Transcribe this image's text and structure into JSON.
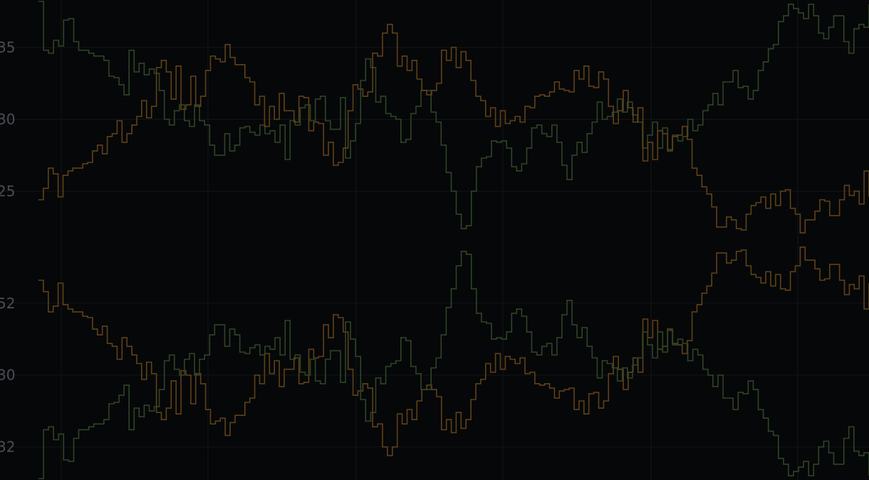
{
  "chart_data": [
    {
      "type": "line",
      "panel": "top",
      "title": "",
      "xlabel": "",
      "ylabel": "",
      "ytick_labels": [
        "35",
        "30",
        "25"
      ],
      "ylim": [
        21.6,
        38.3
      ],
      "grid": true,
      "series": [
        {
          "color": "#2f4526",
          "values": [
            38.2,
            34.8,
            34.6,
            35.5,
            35.1,
            36.9,
            37.0,
            35.4,
            34.8,
            34.8,
            34.6,
            34.4,
            34.4,
            34.1,
            33.0,
            32.9,
            32.4,
            31.7,
            34.8,
            33.3,
            33.9,
            33.1,
            33.5,
            33.2,
            32.0,
            30.0,
            29.6,
            30.6,
            31.0,
            29.9,
            29.5,
            31.0,
            29.9,
            29.6,
            28.2,
            27.5,
            27.5,
            29.0,
            27.8,
            28.2,
            29.4,
            29.5,
            29.1,
            28.9,
            29.6,
            29.0,
            29.2,
            28.4,
            29.6,
            27.2,
            29.9,
            29.6,
            30.8,
            31.0,
            29.9,
            31.4,
            31.6,
            29.9,
            29.3,
            29.3,
            31.5,
            27.3,
            28.5,
            29.7,
            32.7,
            34.2,
            33.6,
            31.2,
            31.6,
            30.4,
            30.2,
            30.0,
            28.4,
            28.6,
            30.4,
            30.9,
            32.0,
            32.0,
            30.5,
            29.8,
            28.2,
            26.3,
            25.0,
            23.4,
            22.4,
            22.6,
            25.0,
            26.7,
            27.3,
            27.4,
            28.5,
            28.4,
            28.5,
            28.0,
            26.7,
            26.4,
            26.9,
            28.0,
            29.4,
            29.6,
            29.0,
            28.8,
            29.6,
            28.4,
            26.8,
            25.8,
            27.5,
            28.4,
            27.7,
            29.0,
            29.8,
            31.2,
            30.0,
            30.2,
            30.5,
            31.4,
            30.5,
            31.2,
            30.3,
            29.8,
            28.0,
            28.9,
            29.8,
            28.0,
            29.4,
            27.9,
            28.9,
            28.5,
            28.8,
            30.0,
            29.2,
            29.6,
            30.6,
            31.0,
            31.8,
            31.0,
            32.6,
            32.6,
            33.4,
            32.2,
            32.3,
            31.4,
            32.0,
            33.4,
            34.0,
            34.9,
            35.2,
            36.8,
            37.2,
            38.0,
            37.7,
            37.4,
            37.0,
            38.0,
            37.2,
            36.0,
            35.6,
            36.4,
            37.2,
            37.2,
            35.4,
            34.6,
            36.3,
            36.6,
            36.4,
            38.0
          ]
        },
        {
          "color": "#5e4218",
          "values": [
            24.4,
            25.2,
            26.6,
            26.2,
            24.6,
            26.1,
            26.4,
            26.6,
            26.6,
            26.9,
            27.0,
            27.8,
            28.2,
            27.6,
            28.8,
            29.0,
            29.9,
            28.4,
            29.0,
            29.6,
            30.2,
            31.3,
            30.1,
            30.9,
            33.6,
            34.1,
            33.3,
            31.4,
            33.7,
            30.7,
            31.0,
            33.0,
            30.9,
            31.6,
            33.4,
            34.4,
            34.2,
            34.0,
            35.2,
            34.3,
            33.8,
            33.8,
            32.9,
            32.6,
            31.0,
            31.6,
            29.5,
            30.9,
            30.0,
            31.8,
            30.6,
            30.6,
            29.8,
            31.6,
            31.5,
            29.2,
            29.8,
            29.7,
            27.5,
            28.4,
            26.8,
            27.0,
            28.0,
            30.6,
            32.4,
            32.1,
            31.6,
            31.9,
            34.6,
            34.4,
            36.0,
            36.6,
            36.0,
            33.7,
            34.4,
            33.4,
            34.1,
            32.8,
            32.0,
            31.7,
            32.0,
            32.5,
            34.8,
            34.1,
            35.0,
            33.6,
            34.7,
            34.1,
            32.7,
            31.6,
            31.3,
            30.2,
            30.8,
            29.5,
            30.6,
            29.7,
            29.9,
            30.2,
            29.8,
            30.9,
            30.8,
            31.6,
            31.7,
            31.6,
            31.9,
            32.6,
            32.1,
            32.0,
            31.9,
            33.4,
            32.8,
            33.7,
            32.3,
            32.2,
            33.3,
            32.8,
            30.9,
            29.7,
            30.6,
            32.0,
            30.8,
            29.8,
            30.8,
            27.1,
            28.4,
            27.2,
            29.2,
            29.0,
            27.8,
            28.8,
            28.9,
            29.5,
            28.6,
            26.6,
            26.1,
            25.3,
            24.8,
            23.9,
            22.5,
            22.5,
            23.2,
            23.0,
            22.4,
            22.3,
            23.4,
            24.0,
            24.2,
            24.6,
            23.8,
            24.8,
            24.0,
            25.0,
            25.1,
            23.8,
            23.4,
            22.1,
            23.0,
            23.0,
            23.6,
            24.4,
            24.3,
            23.3,
            23.3,
            24.4,
            25.4,
            24.7,
            25.0,
            24.1,
            26.4,
            24.6
          ]
        }
      ]
    },
    {
      "type": "line",
      "panel": "bottom",
      "title": "",
      "xlabel": "",
      "ylabel": "",
      "ytick_labels": [
        "52",
        "30",
        "32"
      ],
      "ylim": [
        -38.3,
        -21.6
      ],
      "grid": true,
      "series": [
        {
          "color": "#5e4218",
          "values": [
            -24.4,
            -25.2,
            -26.6,
            -26.2,
            -24.6,
            -26.1,
            -26.4,
            -26.6,
            -26.6,
            -26.9,
            -27.0,
            -27.8,
            -28.2,
            -27.6,
            -28.8,
            -29.0,
            -29.9,
            -28.4,
            -29.0,
            -29.6,
            -30.2,
            -31.3,
            -30.1,
            -30.9,
            -33.6,
            -34.1,
            -33.3,
            -31.4,
            -33.7,
            -30.7,
            -31.0,
            -33.0,
            -30.9,
            -31.6,
            -33.4,
            -34.4,
            -34.2,
            -34.0,
            -35.2,
            -34.3,
            -33.8,
            -33.8,
            -32.9,
            -32.6,
            -31.0,
            -31.6,
            -29.5,
            -30.9,
            -30.0,
            -31.8,
            -30.6,
            -30.6,
            -29.8,
            -31.6,
            -31.5,
            -29.2,
            -29.8,
            -29.7,
            -27.5,
            -28.4,
            -26.8,
            -27.0,
            -28.0,
            -30.6,
            -32.4,
            -32.1,
            -31.6,
            -31.9,
            -34.6,
            -34.4,
            -36.0,
            -36.6,
            -36.0,
            -33.7,
            -34.4,
            -33.4,
            -34.1,
            -32.8,
            -32.0,
            -31.7,
            -32.0,
            -32.5,
            -34.8,
            -34.1,
            -35.0,
            -33.6,
            -34.7,
            -34.1,
            -32.7,
            -31.6,
            -31.3,
            -30.2,
            -30.8,
            -29.5,
            -30.6,
            -29.7,
            -29.9,
            -30.2,
            -29.8,
            -30.9,
            -30.8,
            -31.6,
            -31.7,
            -31.6,
            -31.9,
            -32.6,
            -32.1,
            -32.0,
            -31.9,
            -33.4,
            -32.8,
            -33.7,
            -32.3,
            -32.2,
            -33.3,
            -32.8,
            -30.9,
            -29.7,
            -30.6,
            -32.0,
            -30.8,
            -29.8,
            -30.8,
            -27.1,
            -28.4,
            -27.2,
            -29.2,
            -29.0,
            -27.8,
            -28.8,
            -28.9,
            -29.5,
            -28.6,
            -26.6,
            -26.1,
            -25.3,
            -24.8,
            -23.9,
            -22.5,
            -22.5,
            -23.2,
            -23.0,
            -22.4,
            -22.3,
            -23.4,
            -24.0,
            -24.2,
            -24.6,
            -23.8,
            -24.8,
            -24.0,
            -25.0,
            -25.1,
            -23.8,
            -23.4,
            -22.1,
            -23.0,
            -23.0,
            -23.6,
            -24.4,
            -24.3,
            -23.3,
            -23.3,
            -24.4,
            -25.4,
            -24.7,
            -25.0,
            -24.1,
            -26.4,
            -24.6
          ]
        },
        {
          "color": "#2f4526",
          "values": [
            -38.2,
            -34.8,
            -34.6,
            -35.5,
            -35.1,
            -36.9,
            -37.0,
            -35.4,
            -34.8,
            -34.8,
            -34.6,
            -34.4,
            -34.4,
            -34.1,
            -33.0,
            -32.9,
            -32.4,
            -31.7,
            -34.8,
            -33.3,
            -33.9,
            -33.1,
            -33.5,
            -33.2,
            -32.0,
            -30.0,
            -29.6,
            -30.6,
            -31.0,
            -29.9,
            -29.5,
            -31.0,
            -29.9,
            -29.6,
            -28.2,
            -27.5,
            -27.5,
            -29.0,
            -27.8,
            -28.2,
            -29.4,
            -29.5,
            -29.1,
            -28.9,
            -29.6,
            -29.0,
            -29.2,
            -28.4,
            -29.6,
            -27.2,
            -29.9,
            -29.6,
            -30.8,
            -31.0,
            -29.9,
            -31.4,
            -31.6,
            -29.9,
            -29.3,
            -29.3,
            -31.5,
            -27.3,
            -28.5,
            -29.7,
            -32.7,
            -34.2,
            -33.6,
            -31.2,
            -31.6,
            -30.4,
            -30.2,
            -30.0,
            -28.4,
            -28.6,
            -30.4,
            -30.9,
            -32.0,
            -32.0,
            -30.5,
            -29.8,
            -28.2,
            -26.3,
            -25.0,
            -23.4,
            -22.4,
            -22.6,
            -25.0,
            -26.7,
            -27.3,
            -27.4,
            -28.5,
            -28.4,
            -28.5,
            -28.0,
            -26.7,
            -26.4,
            -26.9,
            -28.0,
            -29.4,
            -29.6,
            -29.0,
            -28.8,
            -29.6,
            -28.4,
            -26.8,
            -25.8,
            -27.5,
            -28.4,
            -27.7,
            -29.0,
            -29.8,
            -31.2,
            -30.0,
            -30.2,
            -30.5,
            -31.4,
            -30.5,
            -31.2,
            -30.3,
            -29.8,
            -28.0,
            -28.9,
            -29.8,
            -28.0,
            -29.4,
            -27.9,
            -28.9,
            -28.5,
            -28.8,
            -30.0,
            -29.2,
            -29.6,
            -30.6,
            -31.0,
            -31.8,
            -31.0,
            -32.6,
            -32.6,
            -33.4,
            -32.2,
            -32.3,
            -31.4,
            -32.0,
            -33.4,
            -34.0,
            -34.9,
            -35.2,
            -36.8,
            -37.2,
            -38.0,
            -37.7,
            -37.4,
            -37.0,
            -38.0,
            -37.2,
            -36.0,
            -35.6,
            -36.4,
            -37.2,
            -37.2,
            -35.4,
            -34.6,
            -36.3,
            -36.6,
            -36.4,
            -38.0
          ]
        }
      ]
    }
  ]
}
